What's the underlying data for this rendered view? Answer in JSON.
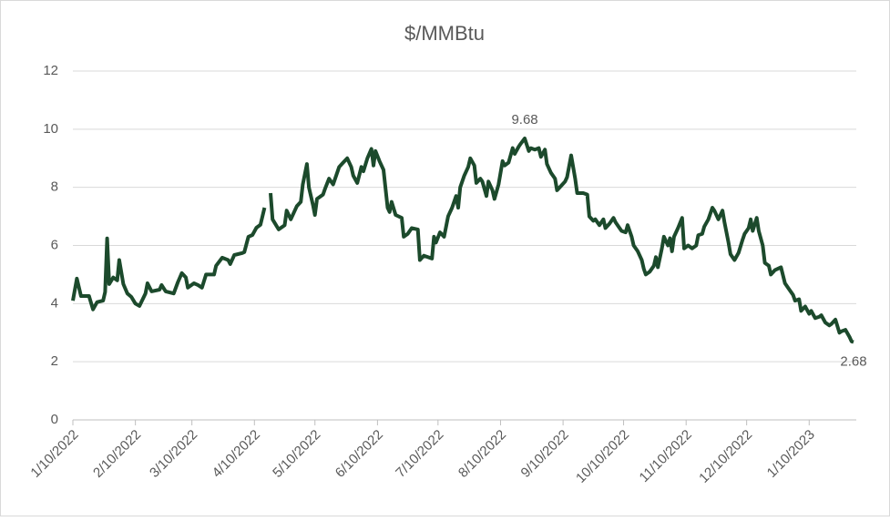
{
  "chart_data": {
    "type": "line",
    "title": "$/MMBtu",
    "color": "#1c4a2c",
    "grid": true,
    "x": [
      "1/10/2022",
      "1/12/2022",
      "1/14/2022",
      "1/18/2022",
      "1/20/2022",
      "1/22/2022",
      "1/25/2022",
      "1/26/2022",
      "1/27/2022",
      "1/28/2022",
      "1/30/2022",
      "2/1/2022",
      "2/2/2022",
      "2/4/2022",
      "2/6/2022",
      "2/8/2022",
      "2/10/2022",
      "2/12/2022",
      "2/15/2022",
      "2/16/2022",
      "2/18/2022",
      "2/22/2022",
      "2/23/2022",
      "2/25/2022",
      "3/1/2022",
      "3/3/2022",
      "3/5/2022",
      "3/7/2022",
      "3/8/2022",
      "3/11/2022",
      "3/13/2022",
      "3/15/2022",
      "3/17/2022",
      "3/21/2022",
      "3/22/2022",
      "3/25/2022",
      "3/28/2022",
      "3/29/2022",
      "3/31/2022",
      "4/4/2022",
      "4/5/2022",
      "4/7/2022",
      "4/9/2022",
      "4/11/2022",
      "4/13/2022",
      "4/15/2022",
      "4/16/2022",
      "4/18/2022",
      "4/19/2022",
      "4/22/2022",
      "4/25/2022",
      "4/26/2022",
      "4/28/2022",
      "5/1/2022",
      "5/3/2022",
      "5/4/2022",
      "5/6/2022",
      "5/7/2022",
      "5/9/2022",
      "5/10/2022",
      "5/11/2022",
      "5/14/2022",
      "5/15/2022",
      "5/17/2022",
      "5/19/2022",
      "5/22/2022",
      "5/24/2022",
      "5/26/2022",
      "5/28/2022",
      "5/29/2022",
      "5/31/2022",
      "6/2/2022",
      "6/3/2022",
      "6/5/2022",
      "6/7/2022",
      "6/8/2022",
      "6/9/2022",
      "6/11/2022",
      "6/13/2022",
      "6/15/2022",
      "6/16/2022",
      "6/17/2022",
      "6/19/2022",
      "6/22/2022",
      "6/23/2022",
      "6/25/2022",
      "6/27/2022",
      "6/30/2022",
      "7/1/2022",
      "7/3/2022",
      "7/5/2022",
      "7/7/2022",
      "7/8/2022",
      "7/9/2022",
      "7/11/2022",
      "7/13/2022",
      "7/14/2022",
      "7/15/2022",
      "7/17/2022",
      "7/19/2022",
      "7/20/2022",
      "7/21/2022",
      "7/23/2022",
      "7/25/2022",
      "7/26/2022",
      "7/28/2022",
      "7/29/2022",
      "7/31/2022",
      "8/1/2022",
      "8/3/2022",
      "8/4/2022",
      "8/6/2022",
      "8/7/2022",
      "8/9/2022",
      "8/11/2022",
      "8/12/2022",
      "8/14/2022",
      "8/16/2022",
      "8/17/2022",
      "8/19/2022",
      "8/20/2022",
      "8/22/2022",
      "8/24/2022",
      "8/25/2022",
      "8/27/2022",
      "8/29/2022",
      "8/30/2022",
      "9/1/2022",
      "9/2/2022",
      "9/4/2022",
      "9/6/2022",
      "9/7/2022",
      "9/9/2022",
      "9/11/2022",
      "9/12/2022",
      "9/14/2022",
      "9/16/2022",
      "9/17/2022",
      "9/20/2022",
      "9/22/2022",
      "9/23/2022",
      "9/25/2022",
      "9/26/2022",
      "9/28/2022",
      "9/30/2022",
      "10/1/2022",
      "10/3/2022",
      "10/5/2022",
      "10/6/2022",
      "10/8/2022",
      "10/9/2022",
      "10/11/2022",
      "10/12/2022",
      "10/14/2022",
      "10/15/2022",
      "10/17/2022",
      "10/19/2022",
      "10/20/2022",
      "10/21/2022",
      "10/23/2022",
      "10/25/2022",
      "10/26/2022",
      "10/27/2022",
      "10/29/2022",
      "10/30/2022",
      "11/1/2022",
      "11/2/2022",
      "11/3/2022",
      "11/4/2022",
      "11/6/2022",
      "11/8/2022",
      "11/9/2022",
      "11/11/2022",
      "11/13/2022",
      "11/15/2022",
      "11/16/2022",
      "11/18/2022",
      "11/19/2022",
      "11/21/2022",
      "11/23/2022",
      "11/24/2022",
      "11/26/2022",
      "11/28/2022",
      "11/29/2022",
      "12/1/2022",
      "12/2/2022",
      "12/4/2022",
      "12/6/2022",
      "12/8/2022",
      "12/9/2022",
      "12/11/2022",
      "12/12/2022",
      "12/13/2022",
      "12/15/2022",
      "12/16/2022",
      "12/18/2022",
      "12/19/2022",
      "12/21/2022",
      "12/22/2022",
      "12/24/2022",
      "12/27/2022",
      "12/29/2022",
      "12/31/2022",
      "1/2/2023",
      "1/3/2023",
      "1/5/2023",
      "1/6/2023",
      "1/8/2023",
      "1/10/2023",
      "1/11/2023",
      "1/13/2023",
      "1/15/2023",
      "1/16/2023",
      "1/18/2023",
      "1/20/2023",
      "1/21/2023",
      "1/23/2023",
      "1/25/2023",
      "1/26/2023",
      "1/28/2023",
      "1/30/2023",
      "1/31/2023",
      "2/1/2023"
    ],
    "values": [
      4.1,
      4.86,
      4.26,
      4.26,
      3.8,
      4.05,
      4.1,
      4.4,
      6.24,
      4.67,
      4.9,
      4.8,
      5.5,
      4.67,
      4.35,
      4.23,
      4.0,
      3.92,
      4.35,
      4.7,
      4.42,
      4.48,
      4.64,
      4.42,
      4.35,
      4.73,
      5.05,
      4.9,
      4.55,
      4.7,
      4.64,
      4.55,
      5.0,
      5.0,
      5.3,
      5.58,
      5.5,
      5.36,
      5.67,
      5.74,
      5.77,
      6.3,
      6.36,
      6.61,
      6.71,
      7.3,
      null,
      7.8,
      6.9,
      6.55,
      6.7,
      7.2,
      6.9,
      7.35,
      7.5,
      8.1,
      8.8,
      8.0,
      7.4,
      7.05,
      7.6,
      7.75,
      7.95,
      8.3,
      8.1,
      8.7,
      8.85,
      9.0,
      8.7,
      8.4,
      8.15,
      8.7,
      8.55,
      9.0,
      9.32,
      8.75,
      9.25,
      8.9,
      8.6,
      7.3,
      7.15,
      7.5,
      7.05,
      6.95,
      6.3,
      6.4,
      6.6,
      6.55,
      5.5,
      5.65,
      5.6,
      5.55,
      6.3,
      6.1,
      6.45,
      6.3,
      6.65,
      7.0,
      7.3,
      7.7,
      7.3,
      8.0,
      8.4,
      8.7,
      9.0,
      8.75,
      8.15,
      8.3,
      8.2,
      7.7,
      8.2,
      7.9,
      7.6,
      8.1,
      8.9,
      8.75,
      8.85,
      9.35,
      9.15,
      9.4,
      9.5,
      9.68,
      9.25,
      9.35,
      9.3,
      9.35,
      9.05,
      9.3,
      8.8,
      8.5,
      8.3,
      7.9,
      8.05,
      8.2,
      8.35,
      9.1,
      8.3,
      7.8,
      7.8,
      7.75,
      7.0,
      6.85,
      6.9,
      6.7,
      6.9,
      6.6,
      6.75,
      6.95,
      6.8,
      6.6,
      6.5,
      6.45,
      6.7,
      6.3,
      6.0,
      5.8,
      5.5,
      5.2,
      5.0,
      5.1,
      5.3,
      5.6,
      5.25,
      5.9,
      6.3,
      6.0,
      6.25,
      5.8,
      6.3,
      6.6,
      6.95,
      5.9,
      6.0,
      5.9,
      6.0,
      6.35,
      6.4,
      6.65,
      6.9,
      7.3,
      7.2,
      6.9,
      7.2,
      6.8,
      6.1,
      5.7,
      5.5,
      5.75,
      6.2,
      6.4,
      6.6,
      6.9,
      6.5,
      6.95,
      6.5,
      6.0,
      5.4,
      5.3,
      5.0,
      5.15,
      5.25,
      4.7,
      4.5,
      4.3,
      4.1,
      4.15,
      3.75,
      3.9,
      3.65,
      3.75,
      3.5,
      3.55,
      3.6,
      3.35,
      3.25,
      3.3,
      3.45,
      3.0,
      3.05,
      3.1,
      2.85,
      2.7,
      2.68
    ],
    "xlim": [
      "1/10/2022",
      "2/1/2023"
    ],
    "xticks": [
      "1/10/2022",
      "2/10/2022",
      "3/10/2022",
      "4/10/2022",
      "5/10/2022",
      "6/10/2022",
      "7/10/2022",
      "8/10/2022",
      "9/10/2022",
      "10/10/2022",
      "11/10/2022",
      "12/10/2022",
      "1/10/2023"
    ],
    "ylim": [
      0,
      12
    ],
    "yticks": [
      0,
      2,
      4,
      6,
      8,
      10,
      12
    ]
  }
}
